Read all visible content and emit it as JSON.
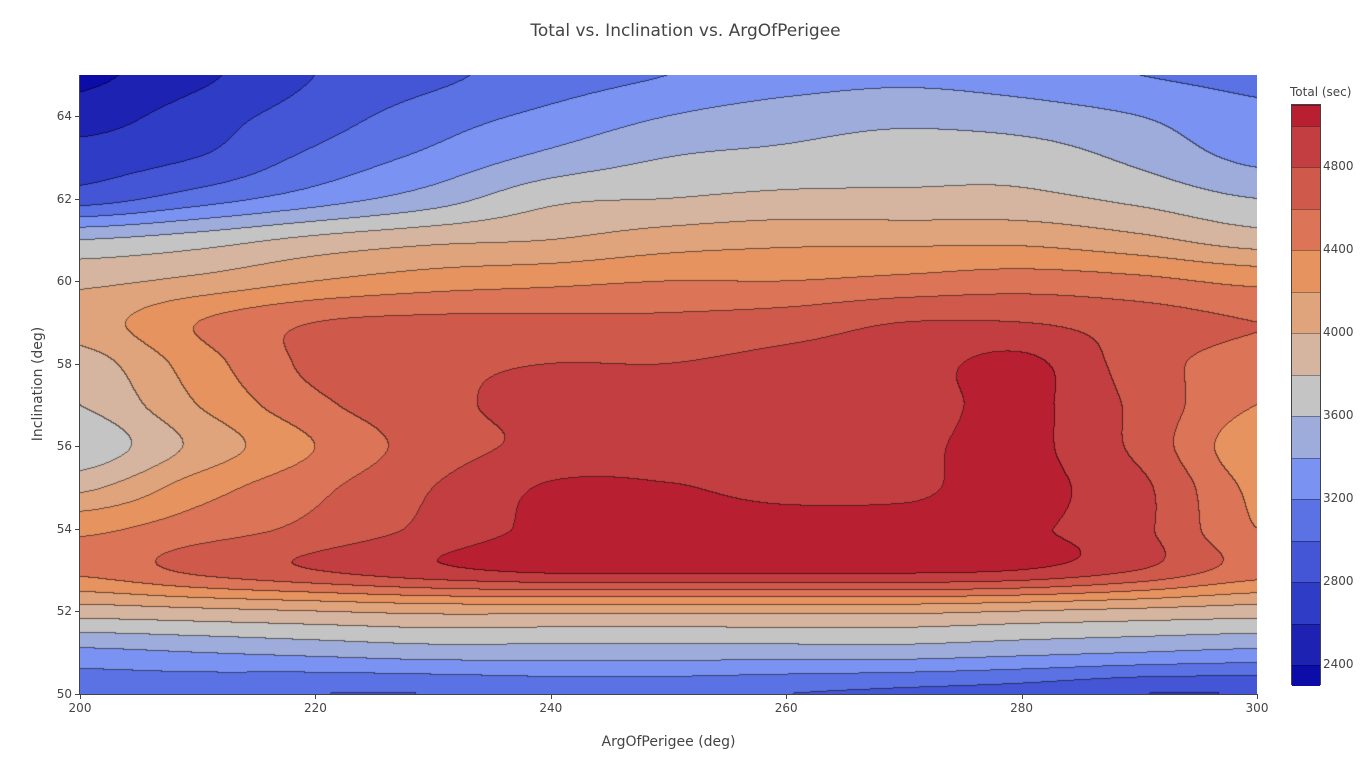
{
  "chart_data": {
    "type": "contour",
    "title": "Total vs. Inclination vs. ArgOfPerigee",
    "xlabel": "ArgOfPerigee (deg)",
    "ylabel": "Inclination (deg)",
    "xlim": [
      200,
      300
    ],
    "ylim": [
      50,
      65
    ],
    "xticks": [
      200,
      220,
      240,
      260,
      280,
      300
    ],
    "yticks": [
      50,
      52,
      54,
      56,
      58,
      60,
      62,
      64
    ],
    "grid": false,
    "colorbar": {
      "title": "Total (sec)",
      "range": [
        2300,
        5100
      ],
      "ticks": [
        2400,
        2800,
        3200,
        3600,
        4000,
        4400,
        4800
      ],
      "placement": "right"
    },
    "contours": {
      "start": 2400,
      "end": 5000,
      "size": 200
    },
    "colors": [
      "#0c0ca8",
      "#1d22b3",
      "#2e3cc6",
      "#4455d6",
      "#5a72e3",
      "#7a93f2",
      "#9eacdc",
      "#c4c4c4",
      "#d6b5a0",
      "#e0a47c",
      "#e6935f",
      "#dc7457",
      "#cf5a4c",
      "#c33e40",
      "#b82032"
    ],
    "x": [
      200,
      210,
      220,
      230,
      240,
      250,
      260,
      270,
      280,
      290,
      300
    ],
    "y": [
      50,
      51,
      52,
      53,
      54,
      55,
      56,
      57,
      58,
      59,
      60,
      61,
      62,
      63,
      64,
      65
    ],
    "z": [
      [
        3050,
        3050,
        3000,
        3000,
        3050,
        3050,
        3000,
        2950,
        2900,
        2800,
        2800
      ],
      [
        3350,
        3400,
        3450,
        3500,
        3500,
        3500,
        3500,
        3500,
        3450,
        3400,
        3350
      ],
      [
        3900,
        3950,
        4000,
        4050,
        4050,
        4050,
        4050,
        4050,
        4000,
        3950,
        3900
      ],
      [
        4450,
        4650,
        4800,
        4950,
        5050,
        5050,
        5050,
        5050,
        5000,
        4800,
        4500
      ],
      [
        4350,
        4500,
        4650,
        4850,
        5050,
        5050,
        5050,
        5050,
        5030,
        4850,
        4400
      ],
      [
        3950,
        4300,
        4550,
        4800,
        5020,
        5010,
        4960,
        4970,
        5050,
        4850,
        4350
      ],
      [
        3650,
        4050,
        4400,
        4700,
        4850,
        4900,
        4900,
        4950,
        5050,
        4750,
        4250
      ],
      [
        3800,
        4200,
        4550,
        4750,
        4850,
        4850,
        4850,
        4900,
        5050,
        4750,
        4400
      ],
      [
        3900,
        4300,
        4650,
        4750,
        4800,
        4800,
        4850,
        4900,
        5050,
        4700,
        4500
      ],
      [
        4100,
        4400,
        4600,
        4650,
        4650,
        4650,
        4700,
        4800,
        4800,
        4700,
        4600
      ],
      [
        3950,
        4050,
        4200,
        4300,
        4350,
        4400,
        4400,
        4450,
        4500,
        4450,
        4350
      ],
      [
        3600,
        3700,
        3850,
        3950,
        4000,
        4100,
        4150,
        4150,
        4150,
        4050,
        3900
      ],
      [
        2900,
        3100,
        3300,
        3500,
        3750,
        3800,
        3850,
        3850,
        3850,
        3750,
        3600
      ],
      [
        2700,
        2800,
        3050,
        3250,
        3450,
        3600,
        3650,
        3700,
        3700,
        3550,
        3350
      ],
      [
        2500,
        2700,
        2900,
        3100,
        3250,
        3400,
        3500,
        3550,
        3500,
        3400,
        3250
      ],
      [
        2350,
        2550,
        2800,
        2950,
        3100,
        3200,
        3300,
        3350,
        3300,
        3200,
        3150
      ]
    ]
  }
}
